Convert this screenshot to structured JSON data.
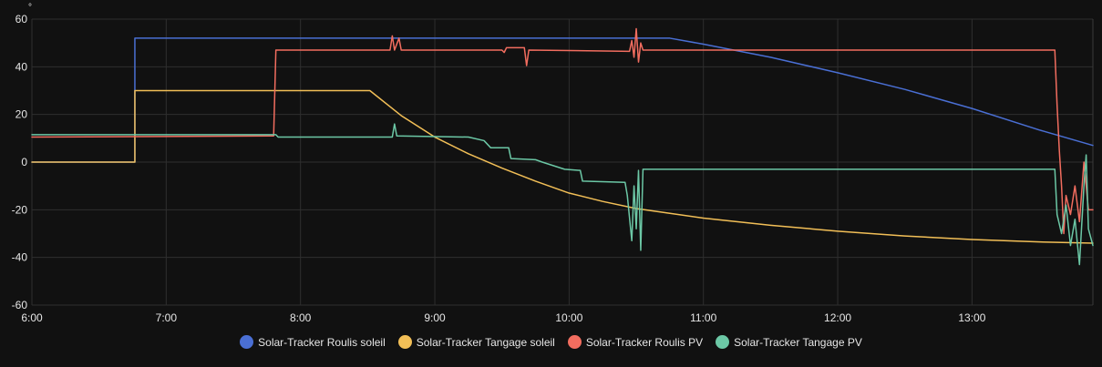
{
  "chart_data": {
    "type": "line",
    "unit": "°",
    "xlim": [
      "6:00",
      "13:54"
    ],
    "ylim": [
      -60,
      60
    ],
    "x_ticks": [
      "6:00",
      "7:00",
      "8:00",
      "9:00",
      "10:00",
      "11:00",
      "12:00",
      "13:00"
    ],
    "y_ticks": [
      "60",
      "40",
      "20",
      "0",
      "-20",
      "-40",
      "-60"
    ],
    "grid": true,
    "legend_position": "bottom-center",
    "series": [
      {
        "name": "Solar-Tracker Roulis soleil",
        "color": "#4a6fd4",
        "points": [
          [
            "6:00",
            0
          ],
          [
            "6:46",
            0
          ],
          [
            "6:46",
            52
          ],
          [
            "10:45",
            52
          ],
          [
            "11:00",
            49.5
          ],
          [
            "11:30",
            44
          ],
          [
            "12:00",
            37.5
          ],
          [
            "12:30",
            30.5
          ],
          [
            "13:00",
            22.5
          ],
          [
            "13:30",
            13.5
          ],
          [
            "13:54",
            7
          ]
        ]
      },
      {
        "name": "Solar-Tracker Tangage soleil",
        "color": "#f2bf57",
        "points": [
          [
            "6:00",
            0
          ],
          [
            "6:46",
            0
          ],
          [
            "6:46",
            30
          ],
          [
            "8:31",
            30
          ],
          [
            "8:45",
            19.5
          ],
          [
            "9:00",
            10.5
          ],
          [
            "9:15",
            3.5
          ],
          [
            "9:30",
            -2.5
          ],
          [
            "9:45",
            -8
          ],
          [
            "10:00",
            -13
          ],
          [
            "10:15",
            -16.5
          ],
          [
            "10:30",
            -19.5
          ],
          [
            "10:45",
            -21.5
          ],
          [
            "11:00",
            -23.5
          ],
          [
            "11:30",
            -26.5
          ],
          [
            "12:00",
            -29
          ],
          [
            "12:30",
            -31
          ],
          [
            "13:00",
            -32.5
          ],
          [
            "13:30",
            -33.5
          ],
          [
            "13:54",
            -34
          ]
        ]
      },
      {
        "name": "Solar-Tracker Roulis PV",
        "color": "#f26d5f",
        "points": [
          [
            "6:00",
            10.5
          ],
          [
            "7:48",
            11
          ],
          [
            "7:49",
            47
          ],
          [
            "8:40",
            47
          ],
          [
            "8:41",
            53
          ],
          [
            "8:42",
            47
          ],
          [
            "8:44",
            52
          ],
          [
            "8:45",
            47
          ],
          [
            "9:30",
            47
          ],
          [
            "9:31",
            46
          ],
          [
            "9:32",
            48
          ],
          [
            "9:40",
            48
          ],
          [
            "9:41",
            40.5
          ],
          [
            "9:42",
            47
          ],
          [
            "10:27",
            46.5
          ],
          [
            "10:28",
            51
          ],
          [
            "10:29",
            44
          ],
          [
            "10:30",
            56
          ],
          [
            "10:31",
            42
          ],
          [
            "10:32",
            50
          ],
          [
            "10:33",
            47
          ],
          [
            "13:37",
            47
          ],
          [
            "13:38",
            24
          ],
          [
            "13:39",
            5
          ],
          [
            "13:40",
            -10
          ],
          [
            "13:41",
            -30
          ],
          [
            "13:42",
            -14
          ],
          [
            "13:44",
            -22
          ],
          [
            "13:46",
            -10
          ],
          [
            "13:48",
            -25
          ],
          [
            "13:50",
            0
          ],
          [
            "13:52",
            -20
          ],
          [
            "13:54",
            -20
          ]
        ]
      },
      {
        "name": "Solar-Tracker Tangage PV",
        "color": "#6cc8a6",
        "points": [
          [
            "6:00",
            11.5
          ],
          [
            "7:49",
            11.5
          ],
          [
            "7:50",
            10.5
          ],
          [
            "8:41",
            10.5
          ],
          [
            "8:42",
            16
          ],
          [
            "8:43",
            11
          ],
          [
            "9:15",
            10.5
          ],
          [
            "9:22",
            9
          ],
          [
            "9:25",
            6
          ],
          [
            "9:33",
            6
          ],
          [
            "9:34",
            1.5
          ],
          [
            "9:45",
            1
          ],
          [
            "9:48",
            0
          ],
          [
            "9:58",
            -3
          ],
          [
            "10:05",
            -3.5
          ],
          [
            "10:06",
            -8
          ],
          [
            "10:25",
            -8.5
          ],
          [
            "10:26",
            -14
          ],
          [
            "10:28",
            -33
          ],
          [
            "10:29",
            -10
          ],
          [
            "10:30",
            -28
          ],
          [
            "10:31",
            -3.5
          ],
          [
            "10:32",
            -37
          ],
          [
            "10:33",
            -3
          ],
          [
            "13:37",
            -3
          ],
          [
            "13:38",
            -22
          ],
          [
            "13:40",
            -30
          ],
          [
            "13:42",
            -18
          ],
          [
            "13:44",
            -35
          ],
          [
            "13:46",
            -24
          ],
          [
            "13:48",
            -43
          ],
          [
            "13:50",
            -10
          ],
          [
            "13:51",
            3
          ],
          [
            "13:52",
            -28
          ],
          [
            "13:54",
            -35
          ]
        ]
      }
    ]
  }
}
